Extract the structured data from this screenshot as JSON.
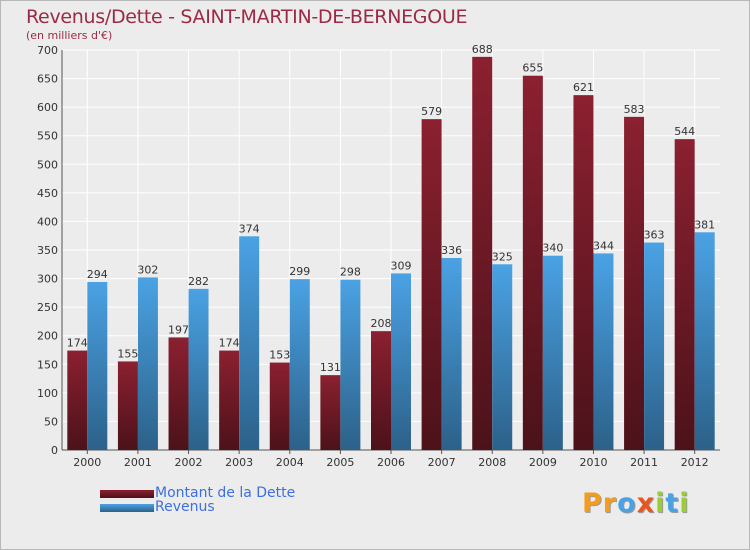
{
  "chart_data": {
    "type": "bar",
    "title": "Revenus/Dette - SAINT-MARTIN-DE-BERNEGOUE",
    "subtitle": "(en milliers d'€)",
    "categories": [
      "2000",
      "2001",
      "2002",
      "2003",
      "2004",
      "2005",
      "2006",
      "2007",
      "2008",
      "2009",
      "2010",
      "2011",
      "2012"
    ],
    "series": [
      {
        "name": "Montant de la Dette",
        "color": "#8b2030",
        "values": [
          174,
          155,
          197,
          174,
          153,
          131,
          208,
          579,
          688,
          655,
          621,
          583,
          544
        ]
      },
      {
        "name": "Revenus",
        "color": "#4aa2e4",
        "values": [
          294,
          302,
          282,
          374,
          299,
          298,
          309,
          336,
          325,
          340,
          344,
          363,
          381
        ]
      }
    ],
    "ylim": [
      0,
      700
    ],
    "yticks": [
      0,
      50,
      100,
      150,
      200,
      250,
      300,
      350,
      400,
      450,
      500,
      550,
      600,
      650,
      700
    ],
    "grid": true,
    "legend_position": "bottom-left"
  },
  "logo": {
    "letters": [
      {
        "ch": "P",
        "color": "#f39c1f"
      },
      {
        "ch": "r",
        "color": "#f39c1f"
      },
      {
        "ch": "o",
        "color": "#4aa2e4"
      },
      {
        "ch": "x",
        "color": "#e8551e"
      },
      {
        "ch": "i",
        "color": "#9acd32"
      },
      {
        "ch": "t",
        "color": "#4aa2e4"
      },
      {
        "ch": "i",
        "color": "#9acd32"
      }
    ]
  }
}
